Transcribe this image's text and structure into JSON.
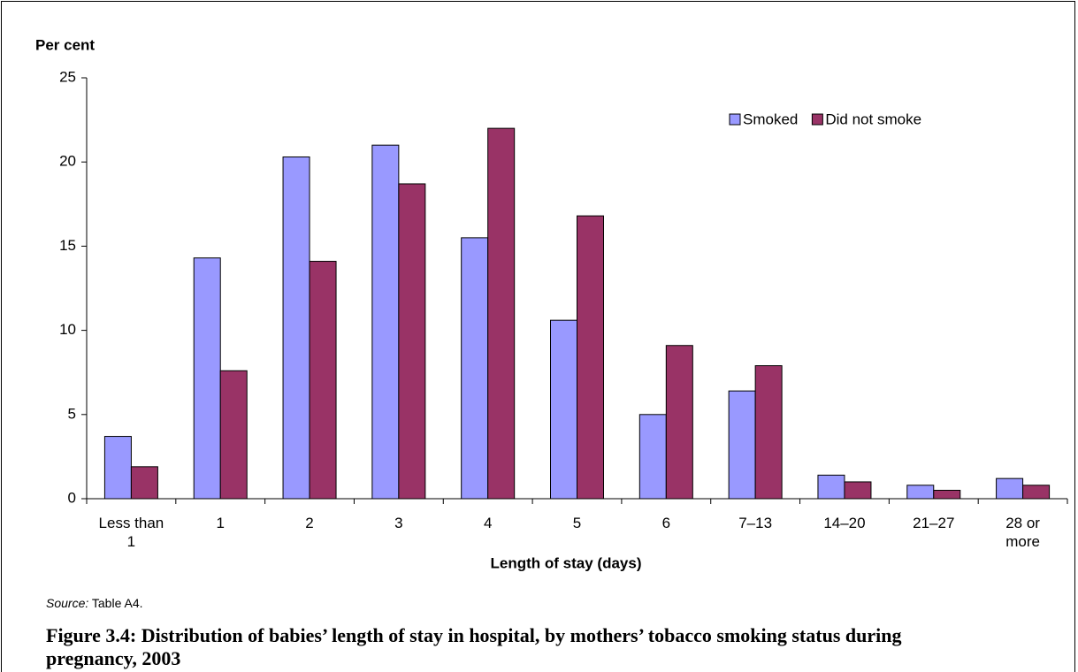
{
  "chart_data": {
    "type": "bar",
    "y_label": "Per cent",
    "x_label": "Length of stay (days)",
    "categories": [
      "Less than 1",
      "1",
      "2",
      "3",
      "4",
      "5",
      "6",
      "7–13",
      "14–20",
      "21–27",
      "28 or more"
    ],
    "series": [
      {
        "name": "Smoked",
        "color": "#9999ff",
        "values": [
          3.7,
          14.3,
          20.3,
          21.0,
          15.5,
          10.6,
          5.0,
          6.4,
          1.4,
          0.8,
          1.2
        ]
      },
      {
        "name": "Did not smoke",
        "color": "#993366",
        "values": [
          1.9,
          7.6,
          14.1,
          18.7,
          22.0,
          16.8,
          9.1,
          7.9,
          1.0,
          0.5,
          0.8
        ]
      }
    ],
    "ylim": [
      0,
      25
    ],
    "yticks": [
      0,
      5,
      10,
      15,
      20,
      25
    ],
    "grid": false,
    "legend": "top-right",
    "source": {
      "label": "Source:",
      "text": "Table A4."
    },
    "caption": "Figure 3.4: Distribution of babies’ length of stay in hospital, by mothers’ tobacco smoking status during pregnancy, 2003"
  }
}
